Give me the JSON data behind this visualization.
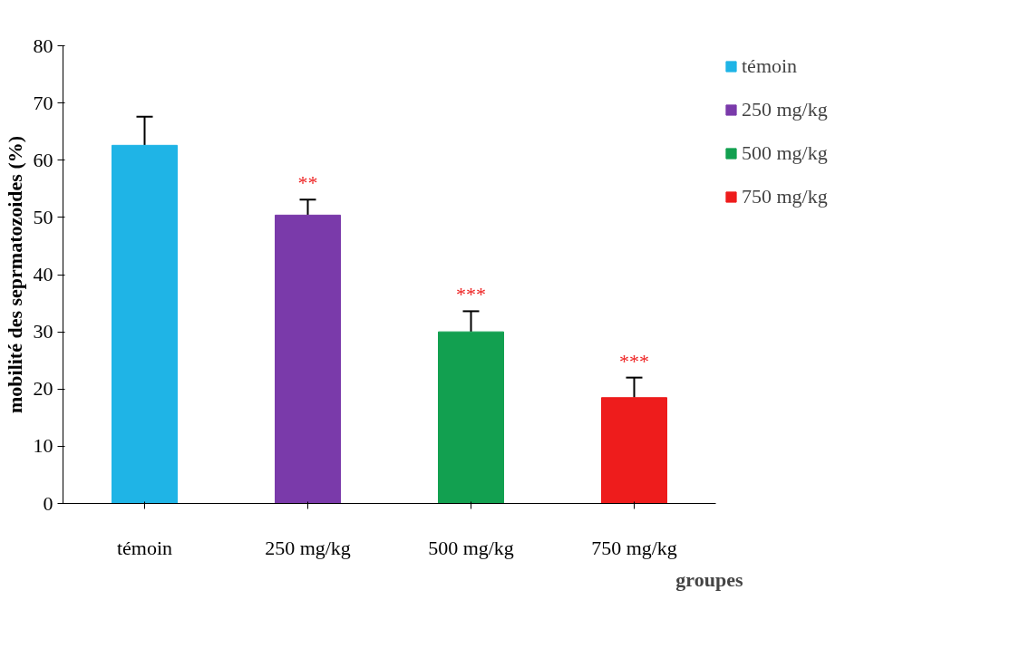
{
  "chart_data": {
    "type": "bar",
    "xlabel": "groupes",
    "ylabel": "mobilité des seprmatozoides (%)",
    "categories": [
      "témoin",
      "250 mg/kg",
      "500 mg/kg",
      "750 mg/kg"
    ],
    "series": [
      {
        "name": "témoin",
        "color": "#1fb4e6",
        "values": [
          62.6,
          null,
          null,
          null
        ],
        "errors": [
          [
            62.6,
            67.6
          ],
          null,
          null,
          null
        ]
      },
      {
        "name": "250 mg/kg",
        "color": "#7a3aaa",
        "values": [
          null,
          50.4,
          null,
          null
        ],
        "errors": [
          null,
          [
            50.4,
            53.1
          ],
          null,
          null
        ]
      },
      {
        "name": "500 mg/kg",
        "color": "#12a050",
        "values": [
          null,
          null,
          30.0,
          null
        ],
        "errors": [
          null,
          null,
          [
            30.0,
            33.6
          ],
          null
        ]
      },
      {
        "name": "750 mg/kg",
        "color": "#ee1c1c",
        "values": [
          null,
          null,
          null,
          18.5
        ],
        "errors": [
          null,
          null,
          null,
          [
            18.5,
            22.0
          ]
        ]
      }
    ],
    "ylim": [
      0,
      80
    ],
    "yticks": [
      0,
      10,
      20,
      30,
      40,
      50,
      60,
      70,
      80
    ],
    "grid": false,
    "legend": "right",
    "annotations": [
      {
        "text": "**",
        "x": "250 mg/kg",
        "y": 53.1
      },
      {
        "text": "***",
        "x": "500 mg/kg",
        "y": 33.6
      },
      {
        "text": "***",
        "x": "750 mg/kg",
        "y": 22.0
      }
    ]
  }
}
